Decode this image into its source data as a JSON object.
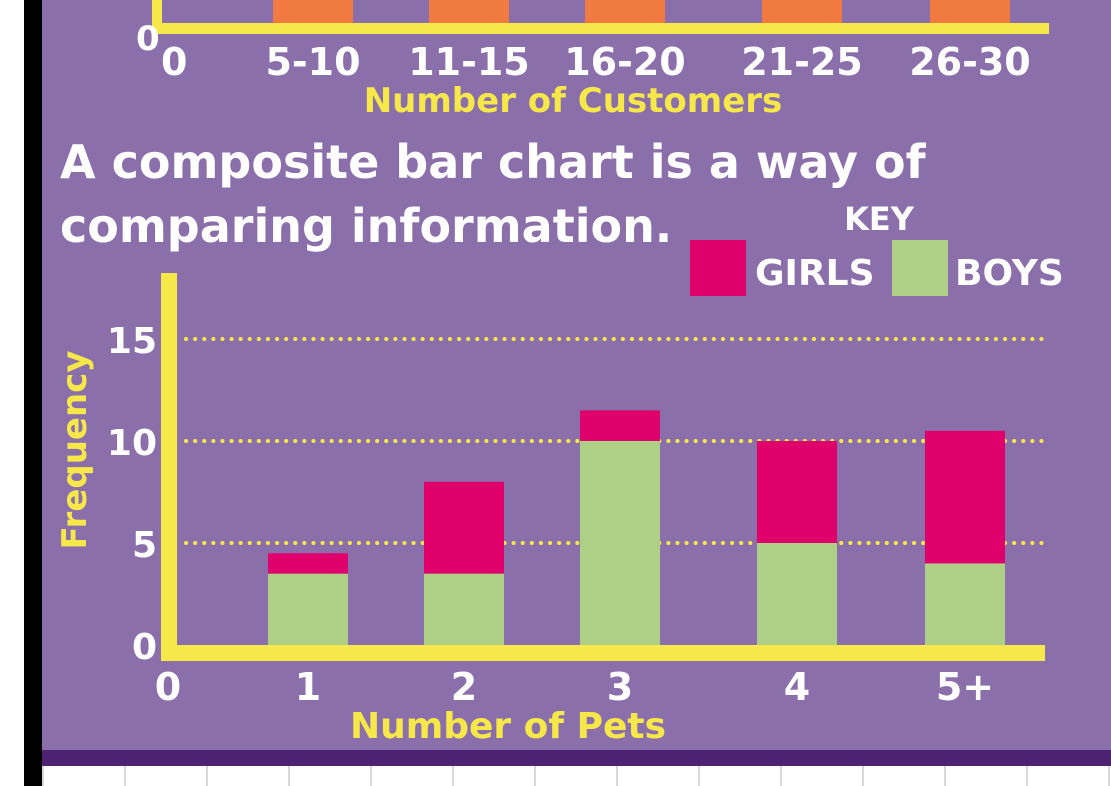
{
  "colors": {
    "background": "#8b6fab",
    "axis": "#f7e84a",
    "girls": "#e0006c",
    "boys": "#aecf86",
    "orange_bars": "#f07a40",
    "white_text": "#ffffff",
    "footer": "#4d2273"
  },
  "top_chart": {
    "zero_y_label": "0",
    "zero_x_label": "0",
    "categories": [
      "5-10",
      "11-15",
      "16-20",
      "21-25",
      "26-30"
    ],
    "xlabel": "Number of Customers"
  },
  "body_text": {
    "line1": "A composite bar chart is a way of",
    "line2": "comparing information."
  },
  "legend": {
    "title": "KEY",
    "girls_label": "GIRLS",
    "boys_label": "BOYS"
  },
  "chart_data": {
    "type": "bar",
    "stacked": true,
    "categories": [
      "1",
      "2",
      "3",
      "4",
      "5+"
    ],
    "series": [
      {
        "name": "BOYS",
        "color": "#aecf86",
        "values": [
          3.5,
          3.5,
          10,
          5,
          4
        ]
      },
      {
        "name": "GIRLS",
        "color": "#e0006c",
        "values": [
          1,
          4.5,
          1.5,
          5,
          6.5
        ]
      }
    ],
    "xlabel": "Number of Pets",
    "ylabel": "Frequency",
    "y_ticks": [
      "0",
      "5",
      "10",
      "15"
    ],
    "x_zero_label": "0",
    "ylim": [
      0,
      18
    ],
    "gridlines": [
      5,
      10,
      15
    ],
    "grid_style": "dotted",
    "legend_position": "top-right"
  }
}
